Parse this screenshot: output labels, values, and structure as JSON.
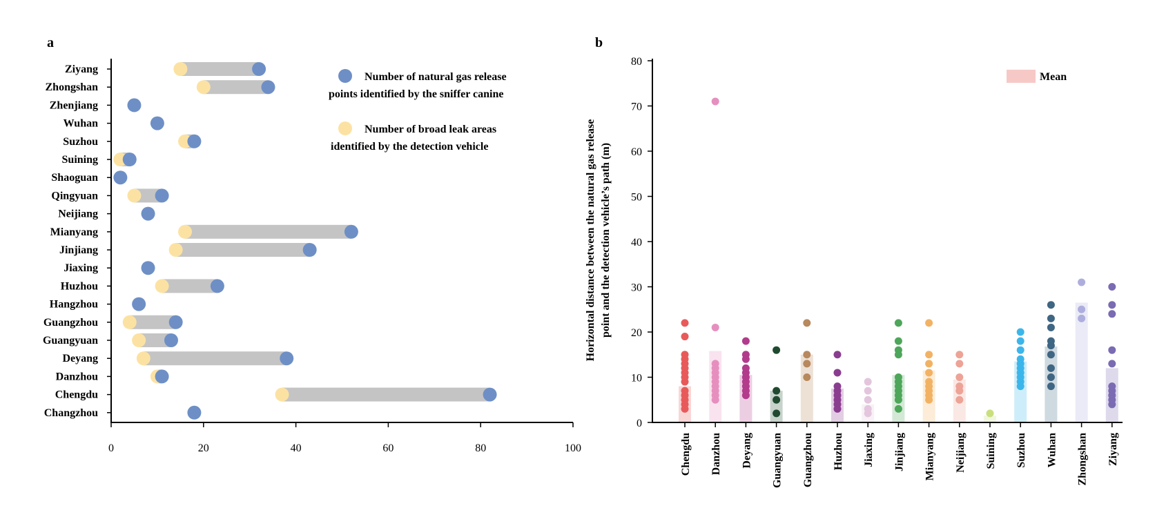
{
  "colors": {
    "blue_dot": "#6e8fc6",
    "yellow_dot": "#fce2a2",
    "connector": "#c4c4c4",
    "mean_legend": "#f6c9c7"
  },
  "chart_data": [
    {
      "type": "dumbbell",
      "panel": "a",
      "orientation": "horizontal",
      "categories": [
        "Ziyang",
        "Zhongshan",
        "Zhenjiang",
        "Wuhan",
        "Suzhou",
        "Suining",
        "Shaoguan",
        "Qingyuan",
        "Neijiang",
        "Mianyang",
        "Jinjiang",
        "Jiaxing",
        "Huzhou",
        "Hangzhou",
        "Guangzhou",
        "Guangyuan",
        "Deyang",
        "Danzhou",
        "Chengdu",
        "Changzhou"
      ],
      "series": [
        {
          "name": "Number of natural gas release points identified by the sniffer canine",
          "legend_line1": "Number of natural gas release",
          "legend_line2": "points identified by the sniffer canine",
          "color": "#6e8fc6",
          "values": [
            32,
            34,
            5,
            10,
            18,
            4,
            2,
            11,
            8,
            52,
            43,
            8,
            23,
            6,
            14,
            13,
            38,
            11,
            82,
            18
          ]
        },
        {
          "name": "Number of broad leak areas identified by the detection vehicle",
          "legend_line1": "Number of broad leak areas",
          "legend_line2": "identified by the detection vehicle",
          "color": "#fce2a2",
          "values": [
            15,
            20,
            null,
            null,
            16,
            2,
            null,
            5,
            null,
            16,
            14,
            null,
            11,
            null,
            4,
            6,
            7,
            10,
            37,
            null
          ]
        }
      ],
      "xlim": [
        0,
        100
      ],
      "xticks": [
        0,
        20,
        40,
        60,
        80,
        100
      ],
      "tick_labels": [
        "0",
        "20",
        "40",
        "60",
        "80",
        "100"
      ],
      "xlabel": "",
      "ylabel": "",
      "legend_position": "top-right"
    },
    {
      "type": "strip-bar",
      "panel": "b",
      "categories": [
        "Chengdu",
        "Danzhou",
        "Deyang",
        "Guangyuan",
        "Guangzhou",
        "Huzhou",
        "Jiaxing",
        "Jinjiang",
        "Mianyang",
        "Neijiang",
        "Suining",
        "Suzhou",
        "Wuhan",
        "Zhongshan",
        "Ziyang"
      ],
      "colors": [
        "#e85a5a",
        "#e68fbf",
        "#b23b8c",
        "#1f4a2f",
        "#b7895d",
        "#8a3d8f",
        "#e3c6dd",
        "#4ea65a",
        "#f2b264",
        "#eda396",
        "#c9df7e",
        "#3cb6ea",
        "#3f6683",
        "#aeaede",
        "#7a6bb3"
      ],
      "means": [
        8,
        15.8,
        10.5,
        7,
        15,
        7.5,
        4,
        10.5,
        11.5,
        9.5,
        1.5,
        13.5,
        16.8,
        26.5,
        12
      ],
      "points": [
        [
          3,
          4,
          5,
          6,
          7,
          9,
          10,
          11,
          12,
          13,
          14,
          15,
          19,
          22
        ],
        [
          5,
          6,
          7,
          8,
          9,
          10,
          11,
          12,
          13,
          21,
          71
        ],
        [
          6,
          7,
          8,
          9,
          10,
          11,
          12,
          14,
          15,
          18
        ],
        [
          2,
          5,
          7,
          16
        ],
        [
          10,
          13,
          15,
          22
        ],
        [
          3,
          4,
          5,
          6,
          7,
          8,
          11,
          15
        ],
        [
          2,
          3,
          5,
          7,
          9
        ],
        [
          3,
          5,
          6,
          7,
          8,
          9,
          10,
          15,
          16,
          18,
          22
        ],
        [
          5,
          6,
          7,
          8,
          9,
          11,
          13,
          15,
          22
        ],
        [
          5,
          7,
          8,
          10,
          13,
          15
        ],
        [
          2
        ],
        [
          8,
          9,
          10,
          11,
          12,
          13,
          14,
          16,
          18,
          20
        ],
        [
          8,
          10,
          12,
          15,
          17,
          18,
          21,
          23,
          26
        ],
        [
          23,
          25,
          31
        ],
        [
          4,
          5,
          6,
          7,
          8,
          13,
          16,
          24,
          26,
          30
        ]
      ],
      "ylim": [
        0,
        80
      ],
      "yticks": [
        0,
        10,
        20,
        30,
        40,
        50,
        60,
        70,
        80
      ],
      "tick_labels": [
        "0",
        "10",
        "20",
        "30",
        "40",
        "50",
        "60",
        "70",
        "80"
      ],
      "ylabel_line1": "Horizontal distance between the natural gas release",
      "ylabel_line2": "point and the detection vehicle’s path (m)",
      "legend": "Mean",
      "legend_position": "top-right"
    }
  ]
}
